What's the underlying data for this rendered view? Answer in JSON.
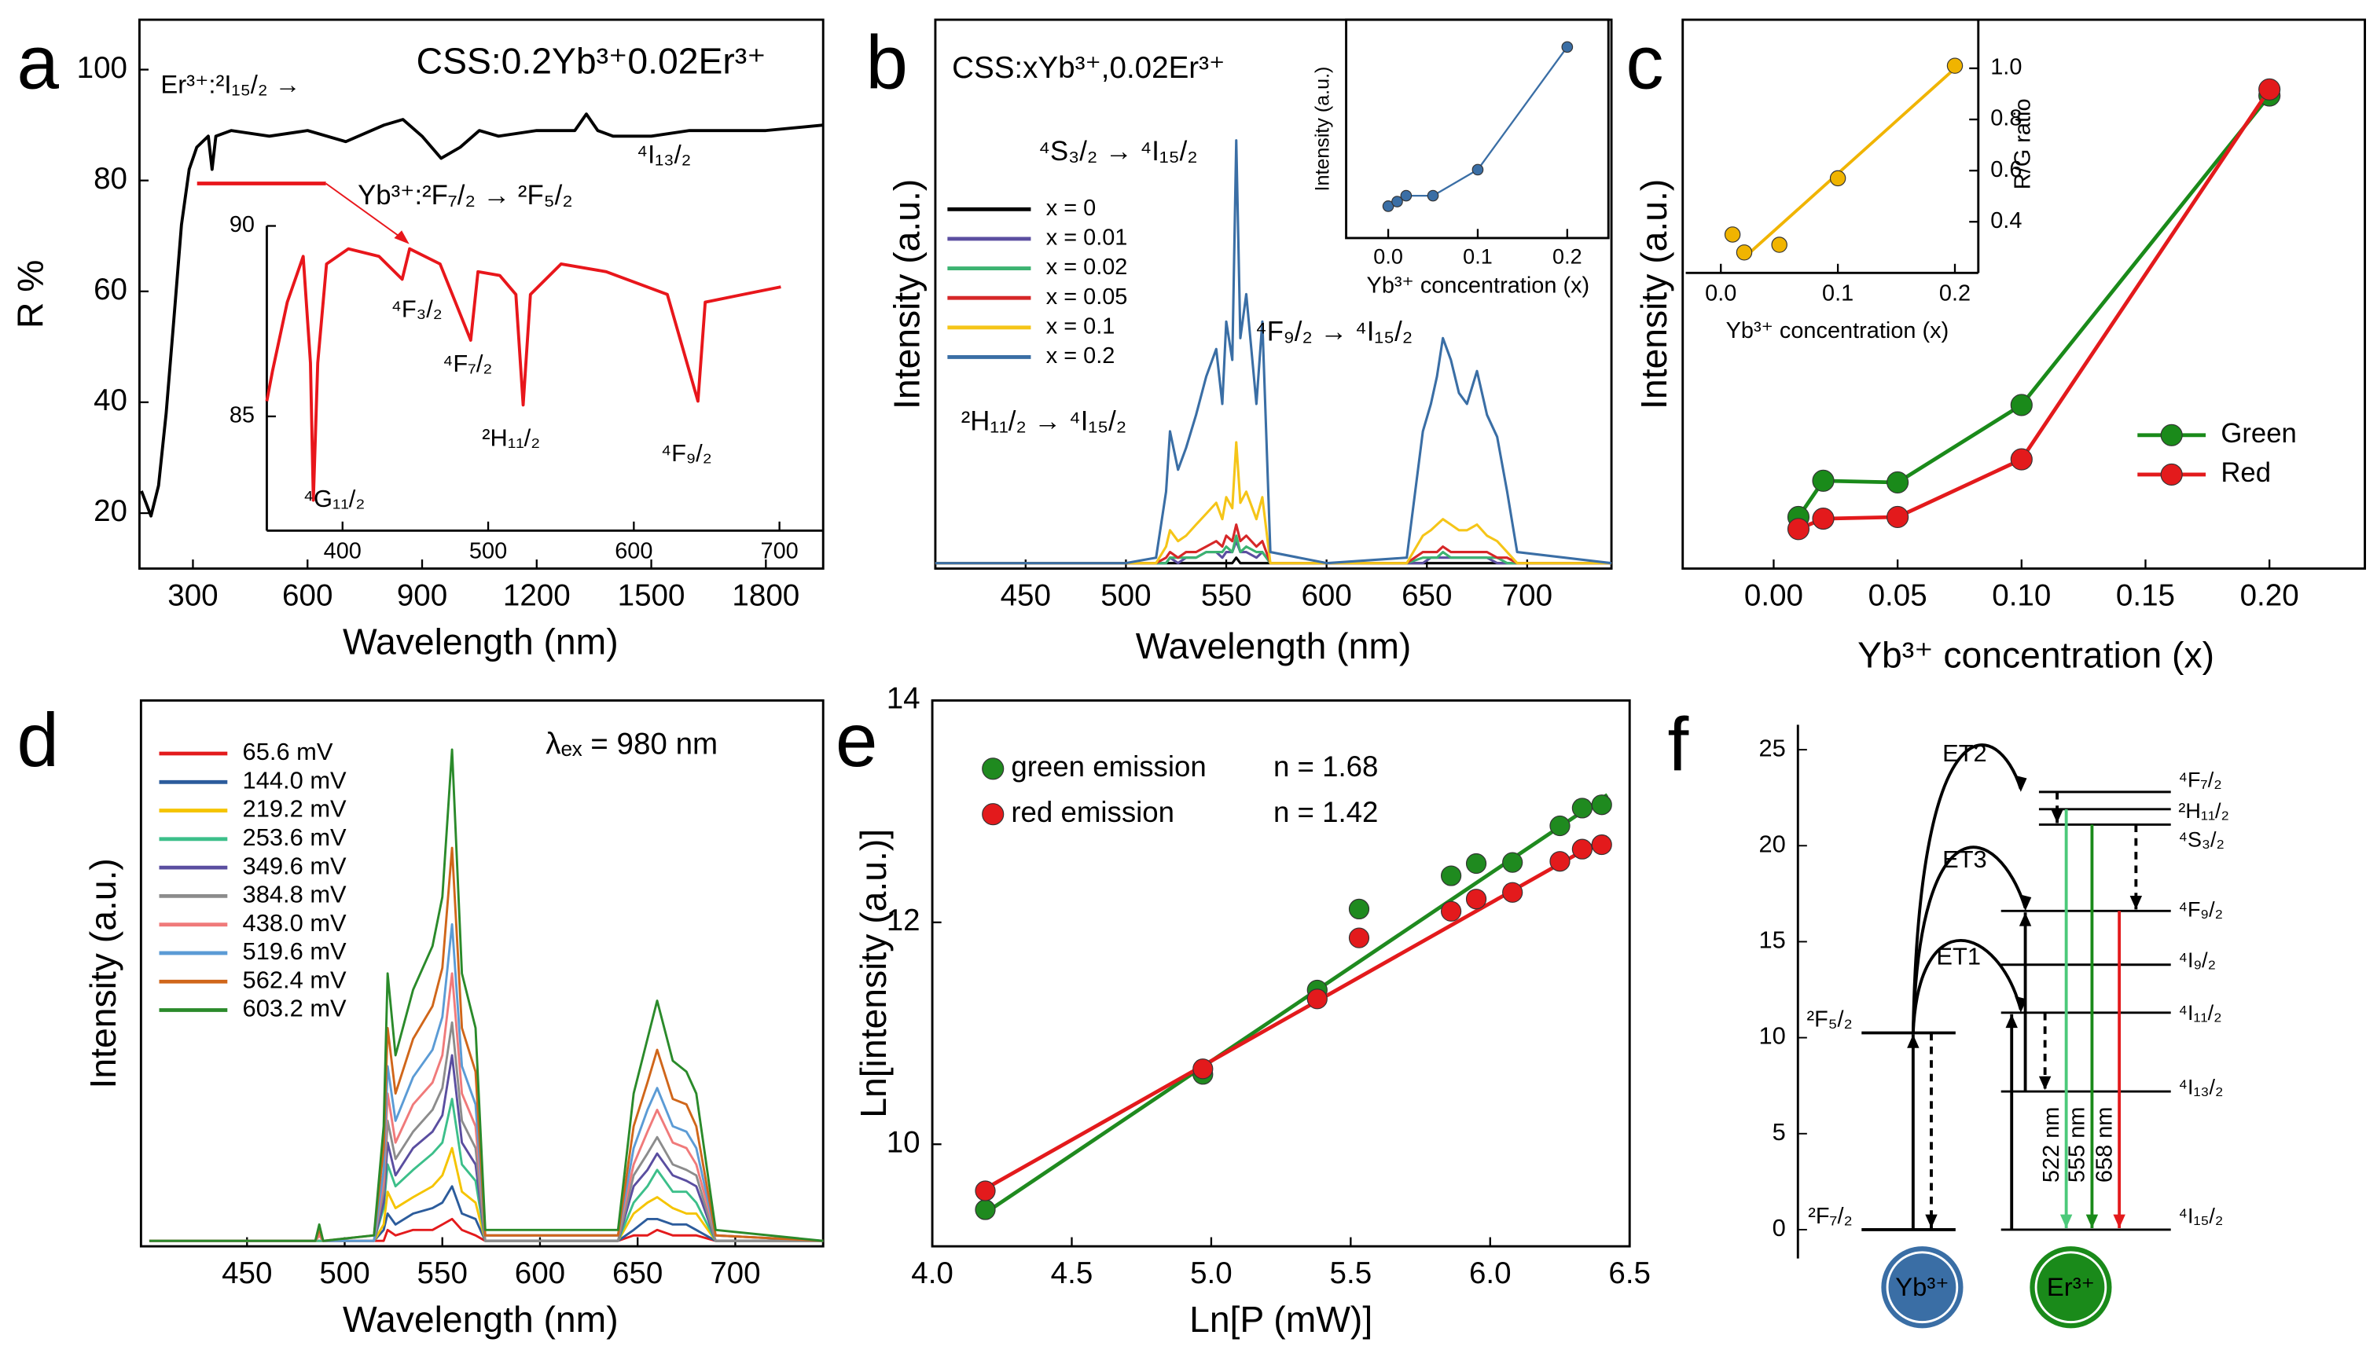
{
  "chart_data": [
    {
      "type": "line",
      "panel_label": "a",
      "x_label": "Wavelength (nm)",
      "y_label": "R %",
      "xlim": [
        160,
        1950
      ],
      "ylim": [
        10,
        109
      ],
      "xticks": [
        300,
        600,
        900,
        1200,
        1500,
        1800
      ],
      "yticks": [
        20,
        40,
        60,
        80,
        100
      ],
      "x": [
        165,
        190,
        210,
        230,
        250,
        270,
        290,
        310,
        340,
        350,
        360,
        400,
        500,
        600,
        700,
        800,
        850,
        900,
        950,
        1000,
        1050,
        1100,
        1200,
        1300,
        1330,
        1360,
        1400,
        1500,
        1600,
        1700,
        1800,
        1950
      ],
      "series": [
        {
          "color": "#000000",
          "values": [
            24,
            19.5,
            25,
            38,
            55,
            72,
            82,
            86,
            88,
            82,
            88,
            89,
            88,
            89,
            87,
            90,
            91,
            88,
            84,
            86,
            89,
            88,
            89,
            89,
            92,
            89,
            88,
            88,
            89,
            89,
            89,
            90
          ]
        }
      ],
      "annotations": [
        "Er³⁺:²I₁₅/₂ →",
        "CSS:0.2Yb³⁺0.02Er³⁺",
        "⁴I₁₃/₂",
        "Yb³⁺:²F₇/₂ → ²F₅/₂"
      ],
      "inset": {
        "type": "line",
        "xlim": [
          348,
          730
        ],
        "ylim": [
          82,
          90
        ],
        "xticks": [
          400,
          500,
          600,
          700
        ],
        "yticks": [
          85,
          90
        ],
        "x": [
          348,
          352,
          362,
          373,
          378,
          380,
          383,
          389,
          404,
          425,
          441,
          446,
          467,
          488,
          493,
          508,
          519,
          524,
          529,
          550,
          581,
          623,
          644,
          649,
          675,
          701
        ],
        "series": [
          {
            "color": "#e8161b",
            "values": [
              85.4,
              86.2,
              88,
              89.2,
              86.4,
              82.8,
              86.4,
              89,
              89.4,
              89.2,
              88.6,
              89.4,
              89,
              87,
              88.8,
              88.7,
              88.2,
              85.3,
              88.2,
              89,
              88.8,
              88.2,
              85.4,
              88,
              88.2,
              88.4
            ]
          }
        ],
        "annotations": [
          "⁴G₁₁/₂",
          "⁴F₃/₂",
          "⁴F₇/₂",
          "²H₁₁/₂",
          "⁴F₉/₂"
        ]
      }
    },
    {
      "type": "line",
      "panel_label": "b",
      "x_label": "Wavelength (nm)",
      "y_label": "Intensity (a.u.)",
      "xlim": [
        405,
        742
      ],
      "ylim": [
        0,
        100
      ],
      "xticks": [
        450,
        500,
        550,
        600,
        650,
        700
      ],
      "legend": "upper left",
      "x": [
        405,
        500,
        515,
        520,
        522,
        526,
        530,
        535,
        540,
        545,
        548,
        550,
        553,
        555,
        557,
        560,
        565,
        568,
        572,
        600,
        640,
        648,
        652,
        655,
        658,
        662,
        666,
        670,
        675,
        680,
        685,
        690,
        695,
        742
      ],
      "series": [
        {
          "name": "x = 0",
          "color": "#000000",
          "values": [
            1,
            1,
            1,
            1,
            1,
            1,
            1,
            1,
            1,
            1,
            1,
            1,
            1,
            2,
            1,
            1,
            1,
            1,
            1,
            1,
            1,
            1,
            1,
            1,
            1,
            1,
            1,
            1,
            1,
            1,
            1,
            1,
            1,
            1
          ]
        },
        {
          "name": "x = 0.01",
          "color": "#5b4ea0",
          "values": [
            1,
            1,
            1,
            1,
            2,
            1,
            2,
            2,
            3,
            3,
            2,
            3,
            3,
            5,
            3,
            3,
            2,
            3,
            1,
            1,
            1,
            1,
            2,
            2,
            2,
            2,
            2,
            2,
            2,
            2,
            1,
            1,
            1,
            1
          ]
        },
        {
          "name": "x = 0.02",
          "color": "#3cb371",
          "values": [
            1,
            1,
            1,
            1,
            2,
            2,
            2,
            2,
            3,
            3,
            3,
            4,
            3,
            6,
            3,
            4,
            3,
            3,
            1,
            1,
            1,
            2,
            2,
            2,
            3,
            2,
            2,
            2,
            2,
            2,
            2,
            1,
            1,
            1
          ]
        },
        {
          "name": "x = 0.05",
          "color": "#d62728",
          "values": [
            1,
            1,
            1,
            2,
            3,
            2,
            3,
            3,
            4,
            5,
            4,
            6,
            5,
            8,
            5,
            6,
            4,
            5,
            1,
            1,
            1,
            3,
            3,
            3,
            4,
            3,
            3,
            3,
            3,
            3,
            2,
            2,
            1,
            1
          ]
        },
        {
          "name": "x = 0.1",
          "color": "#f5c518",
          "values": [
            1,
            1,
            1,
            4,
            7,
            5,
            6,
            8,
            10,
            12,
            9,
            13,
            11,
            23,
            12,
            14,
            9,
            13,
            1,
            1,
            1,
            6,
            7,
            8,
            9,
            8,
            7,
            7,
            8,
            6,
            5,
            3,
            1,
            1
          ]
        },
        {
          "name": "x = 0.2",
          "color": "#3a6ea5",
          "values": [
            1,
            1,
            2,
            14,
            25,
            18,
            22,
            28,
            35,
            40,
            30,
            45,
            38,
            78,
            42,
            50,
            30,
            45,
            3,
            1,
            2,
            25,
            30,
            35,
            42,
            38,
            32,
            30,
            36,
            28,
            24,
            14,
            3,
            1
          ]
        }
      ],
      "annotations": [
        "CSS:xYb³⁺,0.02Er³⁺",
        "⁴S₃/₂ → ⁴I₁₅/₂",
        "⁴F₉/₂ → ⁴I₁₅/₂",
        "²H₁₁/₂ → ⁴I₁₅/₂"
      ],
      "inset": {
        "type": "line",
        "markers": true,
        "x_label": "Yb³⁺ concentration (x)",
        "y_label": "Intensity (a.u.)",
        "xlim": [
          -0.047,
          0.246
        ],
        "ylim": [
          0,
          100
        ],
        "xticks": [
          {
            "value": 0,
            "label": "0.0"
          },
          0.1,
          0.2
        ],
        "x": [
          0,
          0.01,
          0.02,
          0.05,
          0.1,
          0.2
        ],
        "series": [
          {
            "color": "#3a6ea5",
            "values": [
              14.6,
              16.7,
              19.4,
              19.4,
              31.3,
              87.5
            ]
          }
        ]
      }
    },
    {
      "type": "line",
      "panel_label": "c",
      "x_label": "Yb³⁺ concentration (x)",
      "y_label": "Intensity (a.u.)",
      "markers": true,
      "xlim": [
        -0.0367,
        0.2385
      ],
      "ylim": [
        0,
        100
      ],
      "legend": "lower right",
      "xticks": [
        {
          "value": 0,
          "label": "0.00"
        },
        0.05,
        {
          "value": 0.1,
          "label": "0.10"
        },
        0.15,
        {
          "value": 0.2,
          "label": "0.20"
        }
      ],
      "x": [
        0.01,
        0.02,
        0.05,
        0.1,
        0.2
      ],
      "series": [
        {
          "name": "Green",
          "color": "#1a8a1a",
          "values": [
            9.4,
            16.0,
            15.7,
            29.8,
            86.2
          ]
        },
        {
          "name": "Red",
          "color": "#e31a1c",
          "values": [
            7.2,
            9.1,
            9.4,
            19.9,
            87.3
          ]
        }
      ],
      "inset": {
        "type": "scatter",
        "x_label": "Yb³⁺ concentration (x)",
        "y_label": "R/G ratio",
        "xlim": [
          -0.03,
          0.22
        ],
        "ylim": [
          0.2,
          1.19
        ],
        "xticks": [
          {
            "value": 0,
            "label": "0.0"
          },
          0.1,
          0.2
        ],
        "yticks": [
          0.4,
          0.6,
          0.8,
          {
            "value": 1,
            "label": "1.0"
          }
        ],
        "x": [
          0.01,
          0.02,
          0.05,
          0.1,
          0.2
        ],
        "values": [
          0.35,
          0.28,
          0.31,
          0.57,
          1.01
        ],
        "color": "#f0b400",
        "fit": {
          "x": [
            0.02,
            0.2
          ],
          "values": [
            0.26,
            1.0
          ]
        }
      }
    },
    {
      "type": "line",
      "panel_label": "d",
      "x_label": "Wavelength (nm)",
      "y_label": "Intensity (a.u.)",
      "xlim": [
        395.7,
        745
      ],
      "ylim": [
        0,
        100
      ],
      "xticks": [
        450,
        500,
        550,
        600,
        650,
        700
      ],
      "legend": "upper left",
      "annotations": [
        "λₑₓ = 980 nm"
      ],
      "x": [
        400,
        485,
        487,
        489,
        515,
        520,
        522,
        526,
        535,
        545,
        550,
        555,
        560,
        567,
        572,
        640,
        648,
        655,
        660,
        668,
        675,
        680,
        690,
        745
      ],
      "series": [
        {
          "name": "65.6 mV",
          "color": "#e31a1c",
          "values": [
            1,
            1,
            1,
            1,
            1,
            1,
            3,
            2,
            3,
            3,
            4,
            5,
            3,
            2,
            1,
            1,
            2,
            2,
            3,
            2,
            2,
            2,
            1,
            1
          ]
        },
        {
          "name": "144.0 mV",
          "color": "#2c5c9c",
          "values": [
            1,
            1,
            1,
            1,
            1,
            3,
            6,
            4,
            6,
            7,
            8,
            11,
            6,
            5,
            1,
            1,
            3,
            5,
            5,
            4,
            4,
            3,
            1,
            1
          ]
        },
        {
          "name": "219.2 mV",
          "color": "#f5c400",
          "values": [
            1,
            1,
            1,
            1,
            1,
            4,
            10,
            7,
            9,
            11,
            13,
            18,
            10,
            8,
            1,
            1,
            6,
            8,
            9,
            7,
            6,
            6,
            1,
            1
          ]
        },
        {
          "name": "253.6 mV",
          "color": "#3cbf8a",
          "values": [
            1,
            1,
            1,
            1,
            1,
            7,
            15,
            11,
            14,
            17,
            19,
            27,
            15,
            12,
            1,
            1,
            8,
            11,
            14,
            10,
            10,
            8,
            1,
            1
          ]
        },
        {
          "name": "349.6 mV",
          "color": "#5a4ea0",
          "values": [
            1,
            1,
            2,
            1,
            1,
            8,
            19,
            13,
            18,
            21,
            24,
            35,
            19,
            15,
            1,
            1,
            11,
            14,
            17,
            13,
            12,
            11,
            1,
            1
          ]
        },
        {
          "name": "384.8 mV",
          "color": "#8c8c8c",
          "values": [
            1,
            1,
            2,
            1,
            1,
            10,
            23,
            16,
            21,
            25,
            29,
            41,
            23,
            18,
            1,
            1,
            13,
            17,
            20,
            15,
            14,
            13,
            1,
            1
          ]
        },
        {
          "name": "438.0 mV",
          "color": "#f07a7a",
          "values": [
            1,
            1,
            2,
            1,
            1,
            12,
            28,
            19,
            26,
            30,
            35,
            50,
            28,
            22,
            2,
            2,
            15,
            21,
            25,
            19,
            18,
            15,
            2,
            1
          ]
        },
        {
          "name": "519.6 mV",
          "color": "#5b9bd5",
          "values": [
            1,
            1,
            3,
            1,
            1,
            14,
            33,
            23,
            31,
            36,
            42,
            59,
            33,
            26,
            2,
            2,
            18,
            25,
            29,
            22,
            21,
            18,
            2,
            1
          ]
        },
        {
          "name": "562.4 mV",
          "color": "#d0661a",
          "values": [
            1,
            1,
            3,
            1,
            2,
            18,
            40,
            28,
            38,
            44,
            51,
            73,
            40,
            32,
            2,
            2,
            22,
            30,
            36,
            27,
            26,
            22,
            2,
            1
          ]
        },
        {
          "name": "603.2 mV",
          "color": "#2a8a2a",
          "values": [
            1,
            1,
            4,
            1,
            2,
            22,
            50,
            35,
            47,
            55,
            64,
            91,
            50,
            40,
            3,
            3,
            28,
            38,
            45,
            34,
            32,
            28,
            3,
            1
          ]
        }
      ]
    },
    {
      "type": "scatter",
      "panel_label": "e",
      "x_label": "Ln[P (mW)]",
      "y_label": "Ln[intensity (a.u.)]",
      "xlim": [
        4,
        6.5
      ],
      "ylim": [
        9.08,
        14
      ],
      "legend": "upper left",
      "xticks": [
        {
          "value": 4,
          "label": "4.0"
        },
        4.5,
        {
          "value": 5,
          "label": "5.0"
        },
        5.5,
        {
          "value": 6,
          "label": "6.0"
        },
        6.5
      ],
      "yticks": [
        10,
        12,
        14
      ],
      "x": [
        4.19,
        4.97,
        5.38,
        5.53,
        5.86,
        5.95,
        6.08,
        6.25,
        6.33,
        6.4
      ],
      "series": [
        {
          "name": "green emission",
          "annotation": "n = 1.68",
          "color": "#1f8a1f",
          "values": [
            9.41,
            10.63,
            11.39,
            12.12,
            12.42,
            12.53,
            12.54,
            12.87,
            13.03,
            13.06
          ],
          "fit": {
            "x": [
              4.19,
              6.42
            ],
            "values": [
              9.38,
              13.15
            ]
          }
        },
        {
          "name": "red emission",
          "annotation": "n = 1.42",
          "color": "#e31a1c",
          "values": [
            9.58,
            10.68,
            11.31,
            11.86,
            12.1,
            12.21,
            12.27,
            12.55,
            12.66,
            12.7
          ],
          "fit": {
            "x": [
              4.19,
              6.42
            ],
            "values": [
              9.6,
              12.77
            ]
          }
        }
      ]
    },
    {
      "type": "energy-level",
      "panel_label": "f",
      "ylim": [
        -1.5,
        26.3
      ],
      "yticks": [
        0,
        5,
        10,
        15,
        20,
        25
      ],
      "yb_levels": [
        {
          "label": "²F₇/₂",
          "value": 0
        },
        {
          "label": "²F₅/₂",
          "value": 10.25
        }
      ],
      "er_levels": [
        {
          "label": "⁴F₇/₂",
          "value": 22.8
        },
        {
          "label": "²H₁₁/₂",
          "value": 21.9
        },
        {
          "label": "⁴S₃/₂",
          "value": 21.1
        },
        {
          "label": "⁴F₉/₂",
          "value": 16.6
        },
        {
          "label": "⁴I₉/₂",
          "value": 13.8
        },
        {
          "label": "⁴I₁₁/₂",
          "value": 11.3
        },
        {
          "label": "⁴I₁₃/₂",
          "value": 7.2
        },
        {
          "label": "⁴I₁₅/₂",
          "value": 0
        }
      ],
      "transfers": [
        "ET2",
        "ET3",
        "ET1"
      ],
      "emissions": [
        {
          "label": "522 nm",
          "color": "#4cc97a"
        },
        {
          "label": "555 nm",
          "color": "#1a8a1a"
        },
        {
          "label": "658 nm",
          "color": "#e31a1c"
        }
      ],
      "ions": [
        {
          "label": "Yb³⁺",
          "color": "#3a6ea5"
        },
        {
          "label": "Er³⁺",
          "color": "#1a8a1a"
        }
      ]
    }
  ]
}
